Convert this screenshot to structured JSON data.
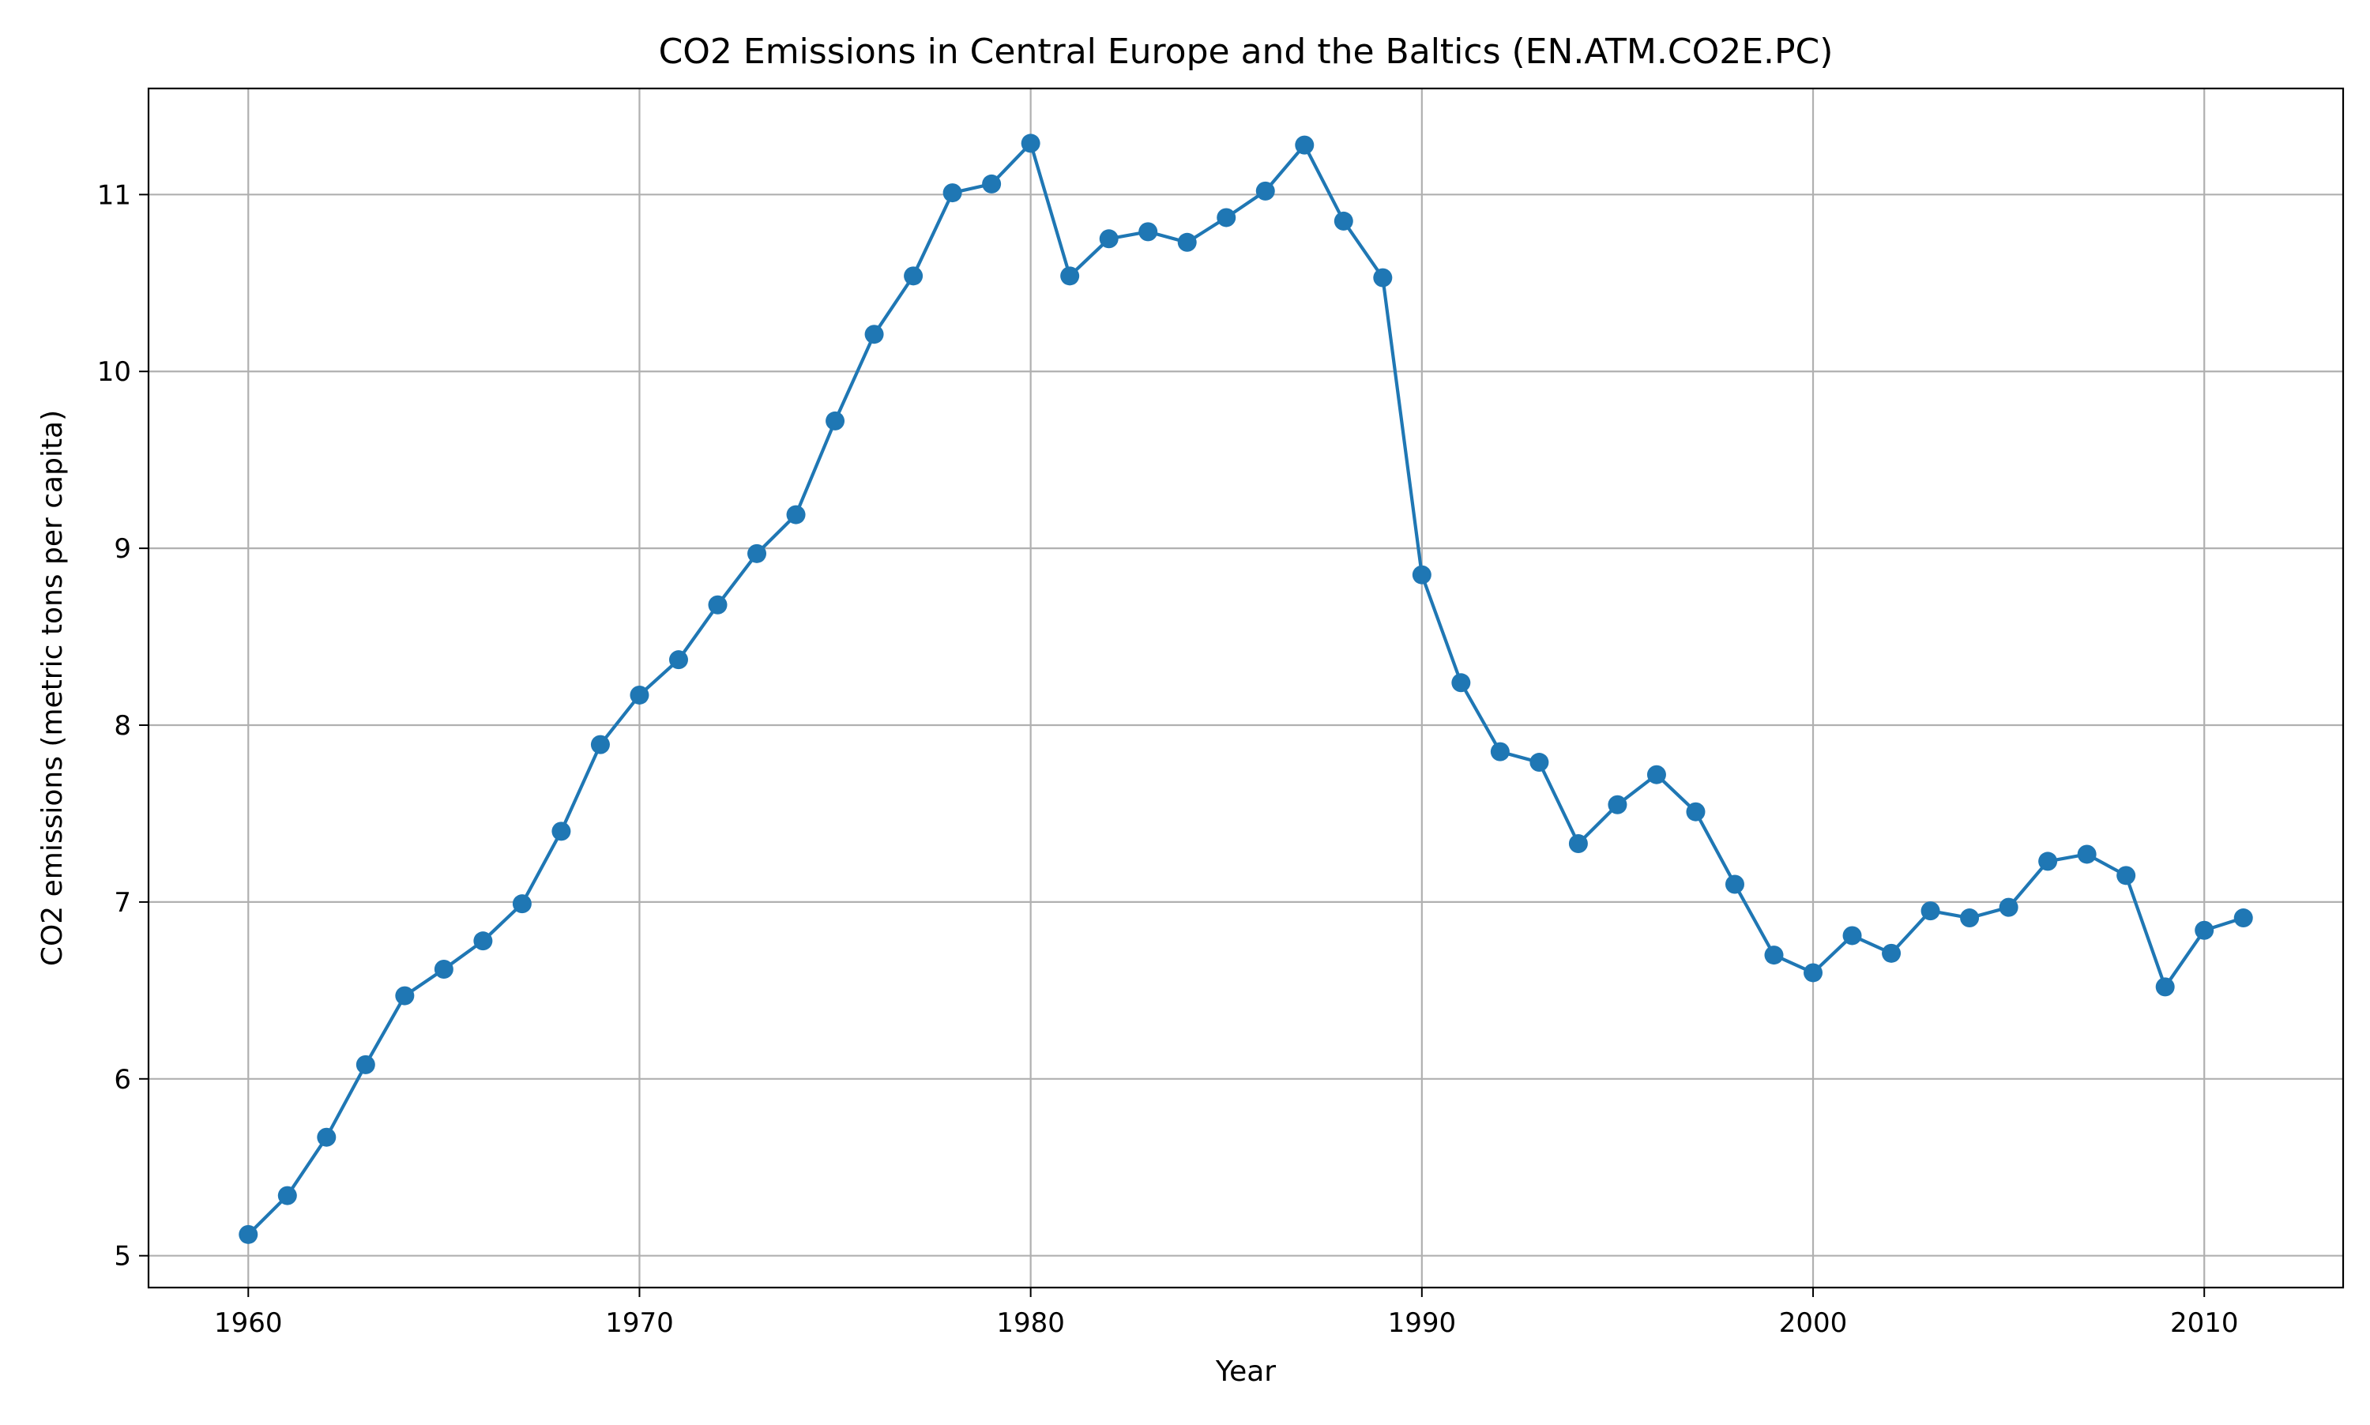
{
  "chart_data": {
    "type": "line",
    "title": "CO2 Emissions in Central Europe and the Baltics (EN.ATM.CO2E.PC)",
    "xlabel": "Year",
    "ylabel": "CO2 emissions (metric tons per capita)",
    "xlim": [
      1957.45,
      2013.55
    ],
    "ylim": [
      4.82,
      11.6
    ],
    "xticks": [
      1960,
      1970,
      1980,
      1990,
      2000,
      2010
    ],
    "xtick_labels": [
      "1960",
      "1970",
      "1980",
      "1990",
      "2000",
      "2010"
    ],
    "yticks": [
      5,
      6,
      7,
      8,
      9,
      10,
      11
    ],
    "ytick_labels": [
      "5",
      "6",
      "7",
      "8",
      "9",
      "10",
      "11"
    ],
    "grid": true,
    "marker": "circle",
    "line_color": "#1f77b4",
    "x": [
      1960,
      1961,
      1962,
      1963,
      1964,
      1965,
      1966,
      1967,
      1968,
      1969,
      1970,
      1971,
      1972,
      1973,
      1974,
      1975,
      1976,
      1977,
      1978,
      1979,
      1980,
      1981,
      1982,
      1983,
      1984,
      1985,
      1986,
      1987,
      1988,
      1989,
      1990,
      1991,
      1992,
      1993,
      1994,
      1995,
      1996,
      1997,
      1998,
      1999,
      2000,
      2001,
      2002,
      2003,
      2004,
      2005,
      2006,
      2007,
      2008,
      2009,
      2010,
      2011
    ],
    "values": [
      5.12,
      5.34,
      5.67,
      6.08,
      6.47,
      6.62,
      6.78,
      6.99,
      7.4,
      7.89,
      8.17,
      8.37,
      8.68,
      8.97,
      9.19,
      9.72,
      10.21,
      10.54,
      11.01,
      11.06,
      11.29,
      10.54,
      10.75,
      10.79,
      10.73,
      10.87,
      11.02,
      11.28,
      10.85,
      10.53,
      8.85,
      8.24,
      7.85,
      7.79,
      7.33,
      7.55,
      7.72,
      7.51,
      7.1,
      6.7,
      6.6,
      6.81,
      6.71,
      6.95,
      6.91,
      6.97,
      7.23,
      7.27,
      7.15,
      6.52,
      6.84,
      6.91
    ]
  }
}
